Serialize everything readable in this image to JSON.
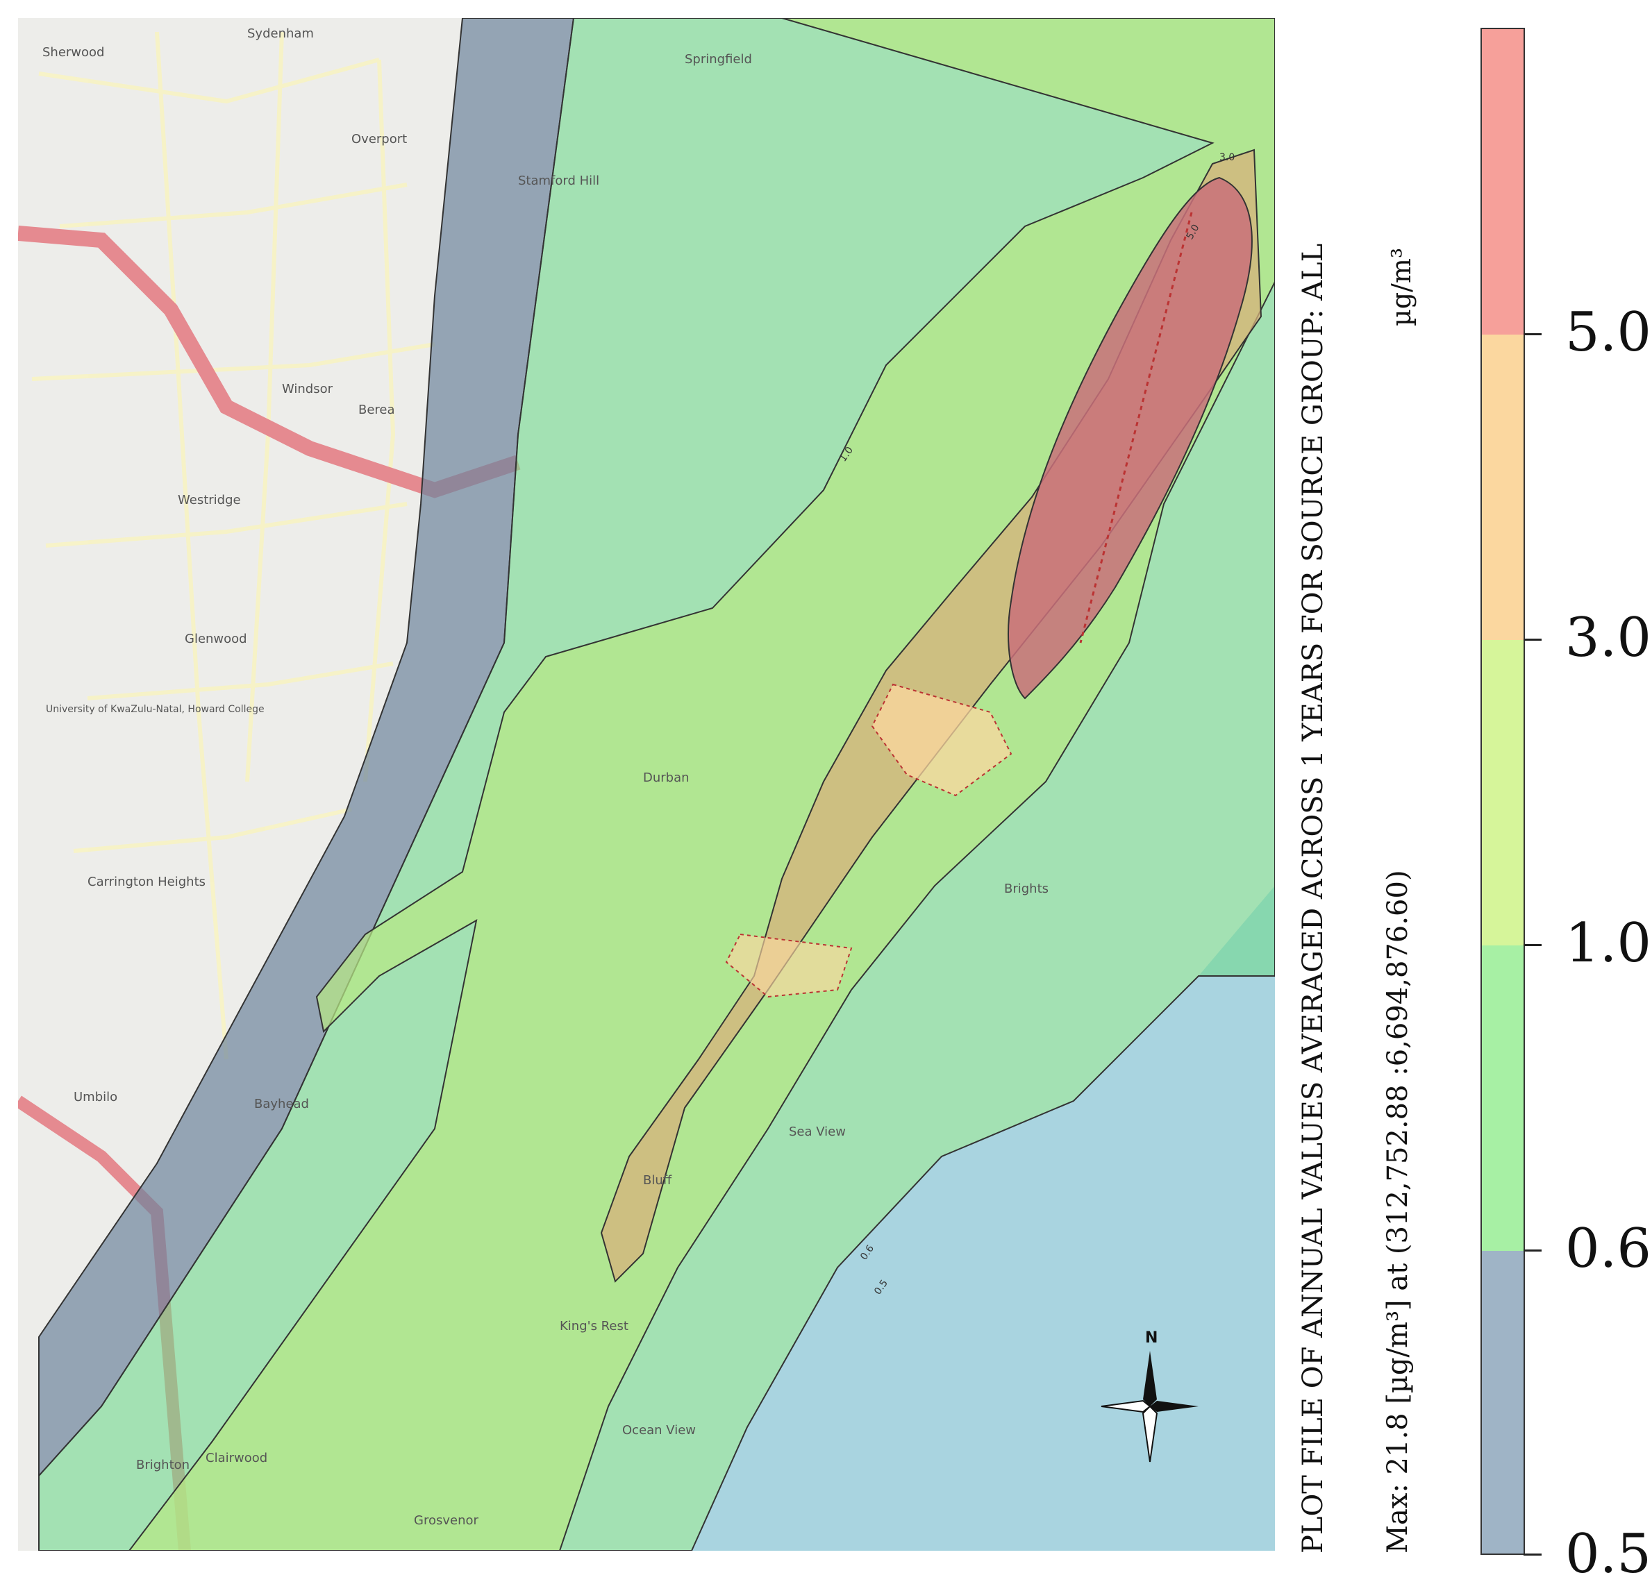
{
  "title": "PLOT FILE OF ANNUAL VALUES AVERAGED ACROSS 1 YEARS FOR SOURCE GROUP: ALL",
  "max_note": "Max: 21.8 [µg/m³] at (312,752.88 :6,694,876.60)",
  "legend": {
    "units": "µg/m³",
    "levels": [
      {
        "value": "5.0",
        "color": "#f6a09a"
      },
      {
        "value": "3.0",
        "color": "#fbd79f"
      },
      {
        "value": "1.0",
        "color": "#d6f59a"
      },
      {
        "value": "0.6",
        "color": "#a7f0a4"
      },
      {
        "value": "0.5",
        "color": "#9fb4c6"
      }
    ],
    "top_band_color": "#f6a09a"
  },
  "compass": {
    "label": "N",
    "icon": "north-arrow-compass-rose-icon"
  },
  "colors": {
    "sea": "#a9d4e0",
    "contour_0_5": "#6e849c",
    "contour_0_6": "#72d98e",
    "contour_1_0": "#b7e785",
    "contour_3_0": "#d7b27b",
    "contour_5_0": "#c9707a"
  },
  "map_labels": {
    "sherwood": "Sherwood",
    "sydenham": "Sydenham",
    "springfield": "Springfield",
    "overport": "Overport",
    "stamford_hill": "Stamford Hill",
    "windsor": "Windsor",
    "westridge": "Westridge",
    "glenwood": "Glenwood",
    "university": "University of KwaZulu-Natal, Howard College",
    "berea": "Berea",
    "carrington_heights": "Carrington Heights",
    "umbilo": "Umbilo",
    "bayhead": "Bayhead",
    "brighton": "Brighton",
    "bluff": "Bluff",
    "kings_rest": "King's Rest",
    "ocean_view": "Ocean View",
    "grosvenor": "Grosvenor",
    "clairwood": "Clairwood",
    "sea_view": "Sea View",
    "brights": "Brights",
    "durban": "Durban"
  },
  "contour_labels": [
    "0.5",
    "0.6",
    "1.0",
    "3.0",
    "5.0"
  ]
}
